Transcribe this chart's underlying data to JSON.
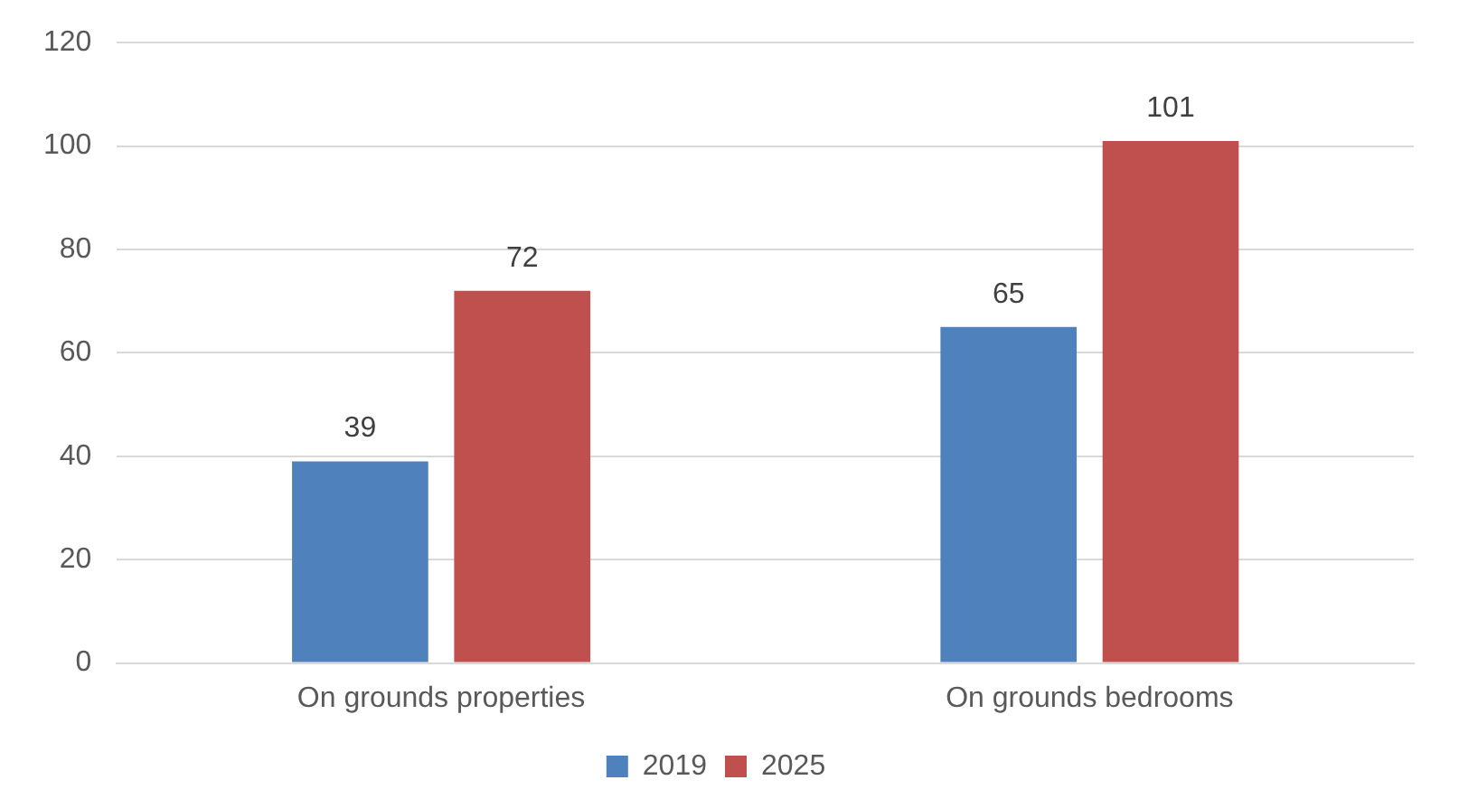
{
  "chart_data": {
    "type": "bar",
    "categories": [
      "On grounds properties",
      "On grounds bedrooms"
    ],
    "series": [
      {
        "name": "2019",
        "color": "#4f81bd",
        "values": [
          39,
          65
        ]
      },
      {
        "name": "2025",
        "color": "#c0504d",
        "values": [
          72,
          101
        ]
      }
    ],
    "ylim": [
      0,
      120
    ],
    "yticks": [
      0,
      20,
      40,
      60,
      80,
      100,
      120
    ],
    "grid": "y",
    "legend": "bottom",
    "data_labels": true
  }
}
